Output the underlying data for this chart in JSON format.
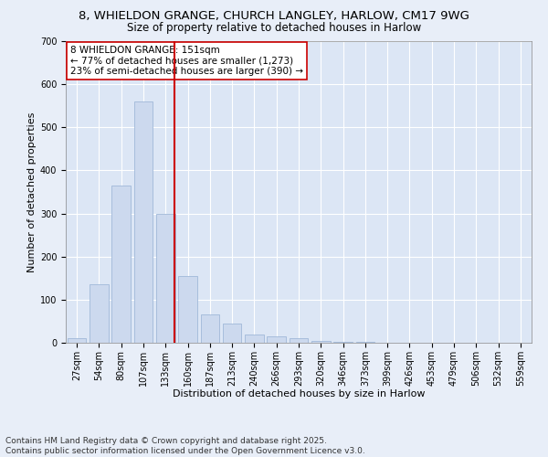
{
  "title1": "8, WHIELDON GRANGE, CHURCH LANGLEY, HARLOW, CM17 9WG",
  "title2": "Size of property relative to detached houses in Harlow",
  "xlabel": "Distribution of detached houses by size in Harlow",
  "ylabel": "Number of detached properties",
  "categories": [
    "27sqm",
    "54sqm",
    "80sqm",
    "107sqm",
    "133sqm",
    "160sqm",
    "187sqm",
    "213sqm",
    "240sqm",
    "266sqm",
    "293sqm",
    "320sqm",
    "346sqm",
    "373sqm",
    "399sqm",
    "426sqm",
    "453sqm",
    "479sqm",
    "506sqm",
    "532sqm",
    "559sqm"
  ],
  "values": [
    10,
    135,
    365,
    560,
    300,
    155,
    65,
    45,
    20,
    15,
    10,
    5,
    3,
    2,
    1,
    1,
    0,
    0,
    0,
    0,
    0
  ],
  "bar_color": "#ccd9ee",
  "bar_edge_color": "#a0b8d8",
  "vline_index": 4.42,
  "vline_color": "#cc0000",
  "annotation_text": "8 WHIELDON GRANGE: 151sqm\n← 77% of detached houses are smaller (1,273)\n23% of semi-detached houses are larger (390) →",
  "annotation_box_color": "#ffffff",
  "annotation_box_edge": "#cc0000",
  "ylim": [
    0,
    700
  ],
  "yticks": [
    0,
    100,
    200,
    300,
    400,
    500,
    600,
    700
  ],
  "footnote": "Contains HM Land Registry data © Crown copyright and database right 2025.\nContains public sector information licensed under the Open Government Licence v3.0.",
  "bg_color": "#e8eef8",
  "plot_bg_color": "#dce6f5",
  "grid_color": "#ffffff",
  "title1_fontsize": 9.5,
  "title2_fontsize": 8.5,
  "xlabel_fontsize": 8,
  "ylabel_fontsize": 8,
  "tick_fontsize": 7,
  "annot_fontsize": 7.5,
  "footnote_fontsize": 6.5
}
